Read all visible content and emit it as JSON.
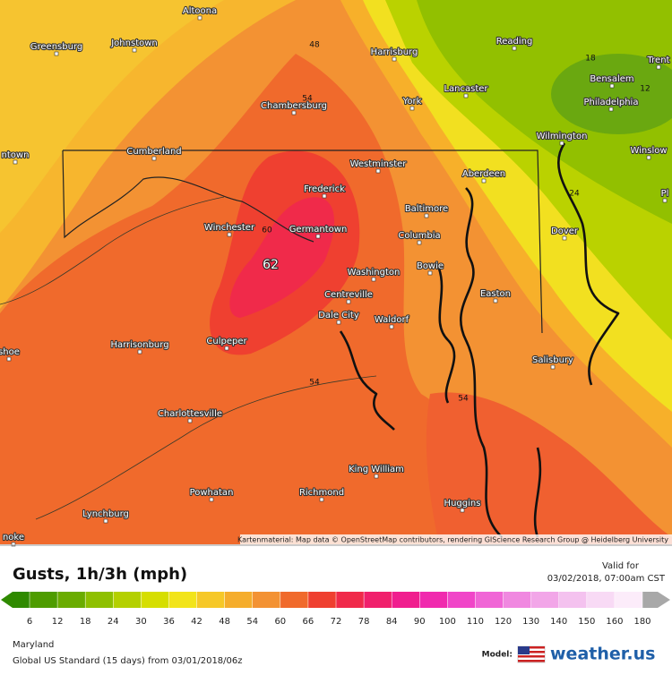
{
  "map": {
    "cities": [
      "Altoona",
      "Greensburg",
      "Johnstown",
      "Harrisburg",
      "Reading",
      "Trent",
      "Bensalem",
      "Lancaster",
      "York",
      "Philadelphia",
      "Chambersburg",
      "Wilmington",
      "Cumberland",
      "ntown",
      "Westminster",
      "Aberdeen",
      "Winslow",
      "Frederick",
      "Baltimore",
      "Winchester",
      "Germantown",
      "Columbia",
      "Dover",
      "Pl",
      "Washington",
      "Bowie",
      "Centreville",
      "Easton",
      "Dale City",
      "Waldorf",
      "Harrisonburg",
      "shoe",
      "Culpeper",
      "Salisbury",
      "Charlottesville",
      "King William",
      "Powhatan",
      "Richmond",
      "Lynchburg",
      "Huggins",
      "noke"
    ],
    "contour_labels": [
      48,
      54,
      60,
      62,
      54,
      54,
      18,
      12,
      24
    ],
    "attribution": "Kartenmaterial: Map data © OpenStreetMap contributors, rendering GIScience Research Group @ Heidelberg University"
  },
  "legend": {
    "title": "Gusts, 1h/3h (mph)",
    "valid_label": "Valid for",
    "valid_time": "03/02/2018, 07:00am CST",
    "scale": [
      6,
      12,
      18,
      24,
      30,
      36,
      42,
      48,
      54,
      60,
      66,
      72,
      78,
      84,
      90,
      100,
      110,
      120,
      130,
      140,
      150,
      160,
      180
    ],
    "colors": [
      "#2f8a00",
      "#4e9c00",
      "#6aac00",
      "#8ec000",
      "#b4d000",
      "#d6de00",
      "#f2e41a",
      "#f6c828",
      "#f5ad2c",
      "#f39233",
      "#f06a2c",
      "#ef4030",
      "#f02a4a",
      "#f0206c",
      "#f01e8e",
      "#f02aae",
      "#f046c8",
      "#f066d6",
      "#f088e0",
      "#f2a6e8",
      "#f4c2ef",
      "#f8daf5",
      "#fcecfa",
      "#a8a8a8"
    ]
  },
  "footer": {
    "region": "Maryland",
    "model_run": "Global US Standard (15 days) from 03/01/2018/06z",
    "model_label": "Model:",
    "brand": "weather.us"
  }
}
